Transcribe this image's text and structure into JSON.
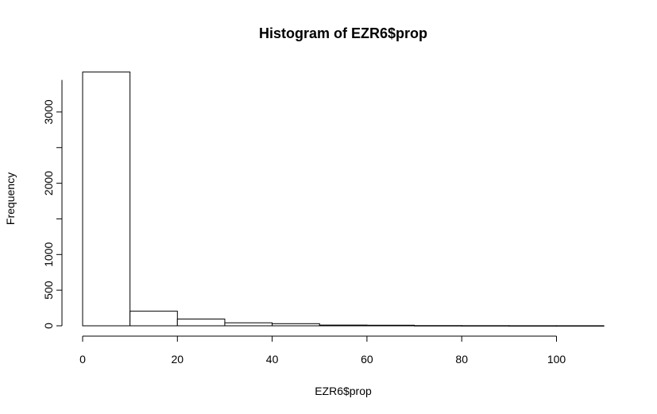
{
  "chart_data": {
    "type": "bar",
    "title": "Histogram of EZR6$prop",
    "xlabel": "EZR6$prop",
    "ylabel": "Frequency",
    "bins": [
      {
        "start": 0,
        "end": 10,
        "value": 3560
      },
      {
        "start": 10,
        "end": 20,
        "value": 205
      },
      {
        "start": 20,
        "end": 30,
        "value": 95
      },
      {
        "start": 30,
        "end": 40,
        "value": 42
      },
      {
        "start": 40,
        "end": 50,
        "value": 30
      },
      {
        "start": 50,
        "end": 60,
        "value": 10
      },
      {
        "start": 60,
        "end": 70,
        "value": 8
      },
      {
        "start": 70,
        "end": 80,
        "value": 3
      },
      {
        "start": 80,
        "end": 90,
        "value": 2
      },
      {
        "start": 90,
        "end": 100,
        "value": 1
      },
      {
        "start": 100,
        "end": 110,
        "value": 1
      }
    ],
    "x_ticks": [
      "0",
      "20",
      "40",
      "60",
      "80",
      "100"
    ],
    "y_ticks": [
      "0",
      "500",
      "1000",
      "2000",
      "3000"
    ],
    "xlim": [
      0,
      110
    ],
    "ylim": [
      0,
      3560
    ],
    "grid": false,
    "colors": {
      "bar_fill": "#ffffff",
      "bar_stroke": "#000000",
      "axis": "#000000"
    }
  }
}
